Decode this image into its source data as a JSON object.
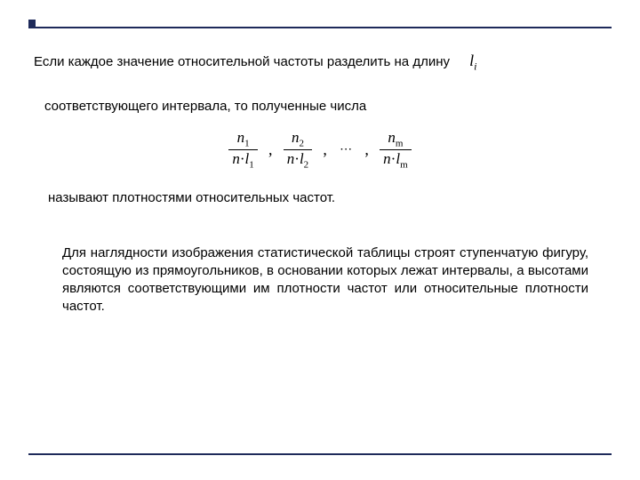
{
  "rule_color": "#1e2a5a",
  "background_color": "#ffffff",
  "text_color": "#000000",
  "body_fontsize": 15,
  "formula_fontsize": 17,
  "inline_var": {
    "base": "l",
    "sub": "i"
  },
  "line1": "Если каждое значение относительной частоты разделить на длину",
  "line2": "соответствующего интервала, то полученные числа",
  "line3": "называют плотностями относительных частот.",
  "para": "Для наглядности изображения статистической таблицы строят ступенчатую фигуру, состоящую из прямоугольников, в основании которых лежат интервалы, а высотами являются соответствующими им плотности частот или относительные плотности частот.",
  "formula": {
    "terms": [
      {
        "num_base": "n",
        "num_sub": "1",
        "den_left": "n",
        "den_mid": "·",
        "den_right_base": "l",
        "den_right_sub": "1"
      },
      {
        "num_base": "n",
        "num_sub": "2",
        "den_left": "n",
        "den_mid": "·",
        "den_right_base": "l",
        "den_right_sub": "2"
      },
      {
        "num_base": "n",
        "num_sub": "m",
        "den_left": "n",
        "den_mid": "·",
        "den_right_base": "l",
        "den_right_sub": "m"
      }
    ],
    "ellipsis": "⋯"
  }
}
